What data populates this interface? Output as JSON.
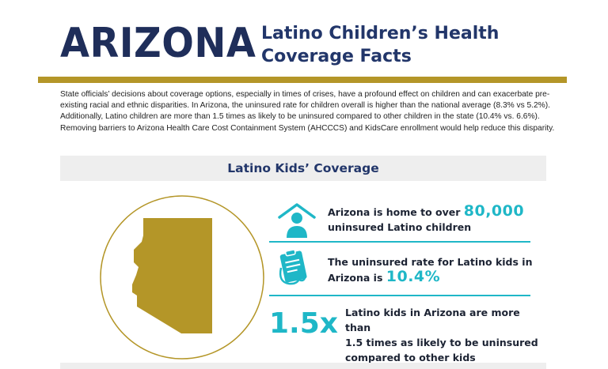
{
  "header": {
    "state": "ARIZONA",
    "subtitle_line1": "Latino Children’s Health",
    "subtitle_line2": "Coverage Facts"
  },
  "intro": {
    "text": "State officials’ decisions about coverage options, especially in times of crises, have a profound effect on children and can exacerbate pre-existing racial and ethnic disparities. In Arizona, the uninsured rate for children overall is higher than the national average (8.3% vs 5.2%). Additionally, Latino children are more than 1.5 times as likely to be uninsured compared to other children in the state (10.4% vs. 6.6%). Removing barriers to Arizona Health Care Cost Containment System (AHCCCS) and KidsCare enrollment would help reduce this disparity."
  },
  "section": {
    "title": "Latino Kids’ Coverage"
  },
  "facts": [
    {
      "prefix": "Arizona is home to over ",
      "stat": "80,000",
      "suffix": "uninsured Latino children",
      "icon": "house-person-icon"
    },
    {
      "prefix": "The uninsured rate for Latino kids in",
      "line2_prefix": "Arizona is ",
      "stat": "10.4%",
      "icon": "clipboard-stethoscope-icon"
    },
    {
      "big": "1.5x",
      "line1": "Latino kids in Arizona are more than",
      "line2": "1.5 times as likely to be uninsured",
      "line3": "compared to other kids"
    }
  ],
  "colors": {
    "navy": "#1f2e5a",
    "gold": "#b49628",
    "teal": "#1fb7c7",
    "band": "#eeeeee"
  }
}
